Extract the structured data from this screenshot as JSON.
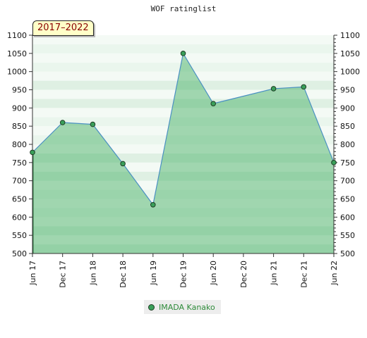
{
  "chart_data": {
    "type": "area",
    "title": "WOF ratinglist",
    "range_label": "2017–2022",
    "xlabel": "",
    "ylabel": "",
    "ylim": [
      500,
      1100
    ],
    "yticks": [
      500,
      550,
      600,
      650,
      700,
      750,
      800,
      850,
      900,
      950,
      1000,
      1050,
      1100
    ],
    "x_ticks": [
      "Jun 17",
      "Dec 17",
      "Jun 18",
      "Dec 18",
      "Jun 19",
      "Dec 19",
      "Jun 20",
      "Dec 20",
      "Jun 21",
      "Dec 21",
      "Jun 22"
    ],
    "series": [
      {
        "name": "IMADA Kanako",
        "points": [
          {
            "x": "Jun 17",
            "y": 778
          },
          {
            "x": "Dec 17",
            "y": 860
          },
          {
            "x": "Jun 18",
            "y": 855
          },
          {
            "x": "Dec 18",
            "y": 747
          },
          {
            "x": "Jun 19",
            "y": 634
          },
          {
            "x": "Dec 19",
            "y": 1050
          },
          {
            "x": "Jun 20",
            "y": 912
          },
          {
            "x": "Jun 21",
            "y": 953
          },
          {
            "x": "Dec 21",
            "y": 958
          },
          {
            "x": "Jun 22",
            "y": 750
          }
        ]
      }
    ],
    "grid": true,
    "legend_position": "bottom",
    "colors": {
      "line": "#4a90c2",
      "fill": "#3aaa5c",
      "marker": "#3aa05a",
      "legend_text": "#2e8b3a"
    }
  }
}
